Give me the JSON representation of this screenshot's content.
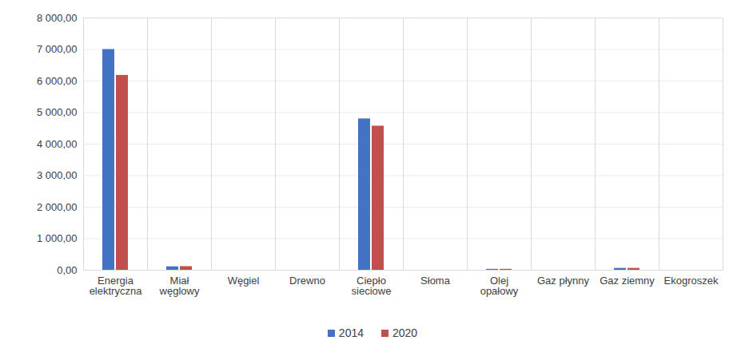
{
  "chart_data": {
    "type": "bar",
    "categories": [
      "Energia elektryczna",
      "Miał węglowy",
      "Węgiel",
      "Drewno",
      "Ciepło sieciowe",
      "Słoma",
      "Olej opałowy",
      "Gaz płynny",
      "Gaz ziemny",
      "Ekogroszek"
    ],
    "series": [
      {
        "name": "2014",
        "color": "#4472c4",
        "values": [
          7000,
          110,
          0,
          0,
          4800,
          0,
          30,
          0,
          60,
          0
        ]
      },
      {
        "name": "2020",
        "color": "#c0504d",
        "values": [
          6180,
          115,
          0,
          0,
          4570,
          0,
          30,
          0,
          60,
          0
        ]
      }
    ],
    "ylim": [
      0,
      8000
    ],
    "yticks": [
      {
        "value": 0,
        "label": "0,00"
      },
      {
        "value": 1000,
        "label": "1 000,00"
      },
      {
        "value": 2000,
        "label": "2 000,00"
      },
      {
        "value": 3000,
        "label": "3 000,00"
      },
      {
        "value": 4000,
        "label": "4 000,00"
      },
      {
        "value": 5000,
        "label": "5 000,00"
      },
      {
        "value": 6000,
        "label": "6 000,00"
      },
      {
        "value": 7000,
        "label": "7 000,00"
      },
      {
        "value": 8000,
        "label": "8 000,00"
      }
    ],
    "grid": true,
    "legend": "bottom"
  }
}
